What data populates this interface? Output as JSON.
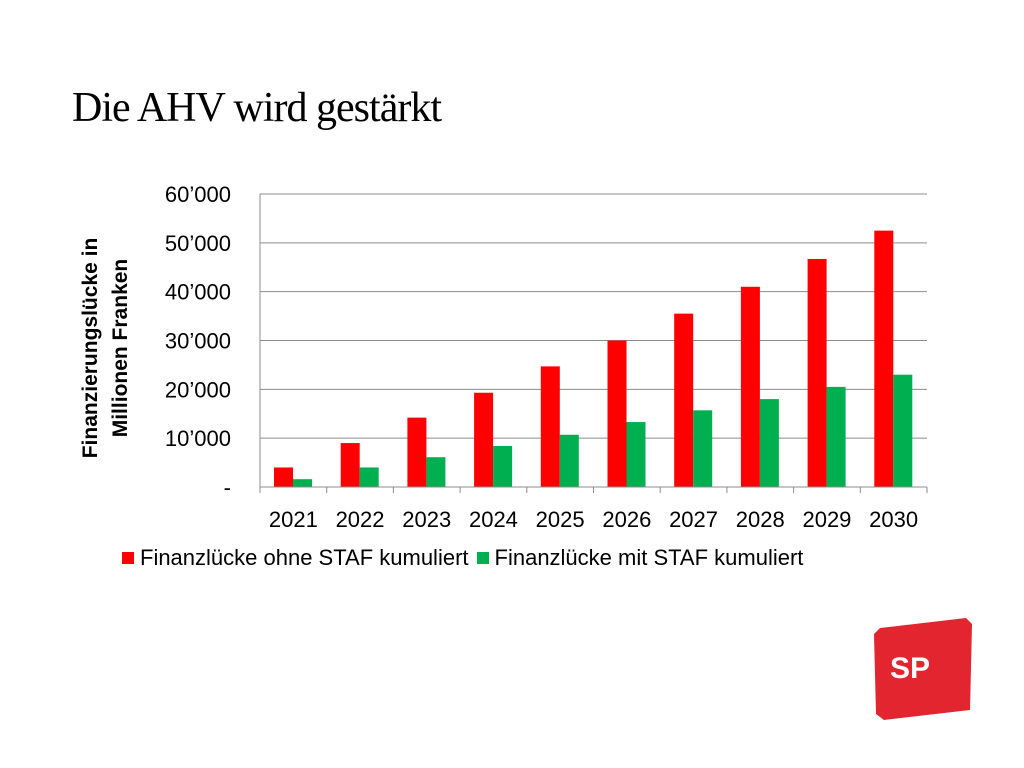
{
  "slide": {
    "title": "Die AHV wird gestärkt"
  },
  "logo": {
    "text": "SP",
    "color": "#e3252f"
  },
  "chart_data": {
    "type": "bar",
    "categories": [
      "2021",
      "2022",
      "2023",
      "2024",
      "2025",
      "2026",
      "2027",
      "2028",
      "2029",
      "2030"
    ],
    "series": [
      {
        "name": "Finanzlücke ohne STAF kumuliert",
        "color": "#ff0000",
        "values": [
          4000,
          9000,
          14200,
          19300,
          24700,
          30000,
          35500,
          41000,
          46700,
          52500
        ]
      },
      {
        "name": "Finanzlücke mit STAF kumuliert",
        "color": "#00b050",
        "values": [
          1600,
          4000,
          6100,
          8400,
          10700,
          13300,
          15700,
          18000,
          20500,
          23000
        ]
      }
    ],
    "ylabel_lines": [
      "Finanzierungslücke in",
      "Millionen Franken"
    ],
    "ylim": [
      0,
      60000
    ],
    "y_ticks": [
      {
        "value": 0,
        "label": "-"
      },
      {
        "value": 10000,
        "label": "10’000"
      },
      {
        "value": 20000,
        "label": "20’000"
      },
      {
        "value": 30000,
        "label": "30’000"
      },
      {
        "value": 40000,
        "label": "40’000"
      },
      {
        "value": 50000,
        "label": "50’000"
      },
      {
        "value": 60000,
        "label": "60’000"
      }
    ],
    "grid": true,
    "legend_position": "bottom"
  }
}
